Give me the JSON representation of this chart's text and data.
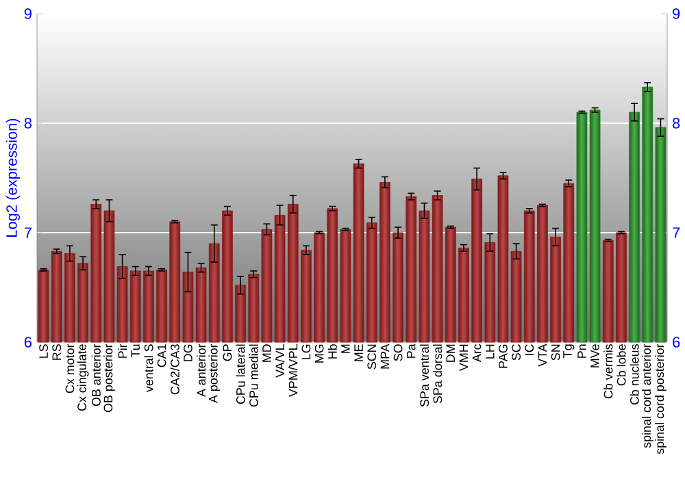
{
  "chart_data": {
    "type": "bar",
    "ylabel": "Log2 (expression)",
    "categories": [
      "LS",
      "RS",
      "Cx motor",
      "Cx cingulate",
      "OB anterior",
      "OB posterior",
      "Pir",
      "Tu",
      "ventral S",
      "CA1",
      "CA2/CA3",
      "DG",
      "A anterior",
      "A posterior",
      "GP",
      "CPu lateral",
      "CPu medial",
      "MD",
      "VA/VL",
      "VPM/VPL",
      "LG",
      "MG",
      "Hb",
      "M",
      "ME",
      "SCN",
      "MPA",
      "SO",
      "Pa",
      "SPa ventral",
      "SPa dorsal",
      "DM",
      "VMH",
      "Arc",
      "LH",
      "PAG",
      "SC",
      "IC",
      "VTA",
      "SN",
      "Tg",
      "Pn",
      "MVe",
      "Cb vermis",
      "Cb lobe",
      "Cb nucleus",
      "spinal cord anterior",
      "spinal cord posterior"
    ],
    "values": [
      6.66,
      6.83,
      6.81,
      6.72,
      7.26,
      7.2,
      6.69,
      6.65,
      6.65,
      6.66,
      7.1,
      6.64,
      6.68,
      6.9,
      7.2,
      6.52,
      6.62,
      7.03,
      7.16,
      7.26,
      6.84,
      7.0,
      7.22,
      7.03,
      7.63,
      7.09,
      7.46,
      7.0,
      7.33,
      7.2,
      7.34,
      7.05,
      6.86,
      7.49,
      6.91,
      7.52,
      6.83,
      7.2,
      7.25,
      6.96,
      7.45,
      8.1,
      8.12,
      6.93,
      7.0,
      8.1,
      8.33,
      7.96
    ],
    "errors": [
      0.01,
      0.02,
      0.07,
      0.06,
      0.04,
      0.1,
      0.11,
      0.04,
      0.04,
      0.01,
      0.01,
      0.18,
      0.04,
      0.17,
      0.04,
      0.08,
      0.03,
      0.05,
      0.09,
      0.08,
      0.04,
      0.01,
      0.02,
      0.01,
      0.04,
      0.05,
      0.05,
      0.05,
      0.03,
      0.07,
      0.04,
      0.01,
      0.03,
      0.1,
      0.08,
      0.03,
      0.07,
      0.02,
      0.01,
      0.08,
      0.03,
      0.01,
      0.02,
      0.01,
      0.01,
      0.08,
      0.04,
      0.08
    ],
    "colors": [
      "#b22727",
      "#b22727",
      "#b22727",
      "#b22727",
      "#b22727",
      "#b22727",
      "#b22727",
      "#b22727",
      "#b22727",
      "#b22727",
      "#b22727",
      "#b22727",
      "#b22727",
      "#b22727",
      "#b22727",
      "#b22727",
      "#b22727",
      "#b22727",
      "#b22727",
      "#b22727",
      "#b22727",
      "#b22727",
      "#b22727",
      "#b22727",
      "#b22727",
      "#b22727",
      "#b22727",
      "#b22727",
      "#b22727",
      "#b22727",
      "#b22727",
      "#b22727",
      "#b22727",
      "#b22727",
      "#b22727",
      "#b22727",
      "#b22727",
      "#b22727",
      "#b22727",
      "#b22727",
      "#b22727",
      "#2ca02c",
      "#2ca02c",
      "#b22727",
      "#b22727",
      "#2ca02c",
      "#2ca02c",
      "#2ca02c"
    ],
    "ylim": [
      6,
      9
    ],
    "yticks": [
      6,
      7,
      8,
      9
    ],
    "y2lim": [
      6,
      9
    ],
    "y2ticks": [
      6,
      7,
      8,
      9
    ],
    "grid": "y"
  }
}
